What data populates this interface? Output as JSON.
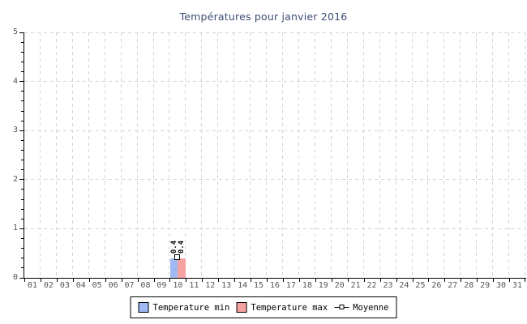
{
  "colors": {
    "title": "#3D4D75",
    "axis": "#000000",
    "grid": "#D4D4D4",
    "tick_label": "#555555",
    "value_label": "#000000",
    "temp_min": "#A0B9F3",
    "temp_max": "#F7A2A2",
    "marker_fill": "#FFFFFF",
    "marker_border": "#000000",
    "legend_bg": "#FFFFFF",
    "legend_border": "#000000"
  },
  "chart_data": {
    "type": "bar",
    "title": "Températures pour janvier 2016",
    "xlabel": "",
    "ylabel": "",
    "ylim": [
      0,
      5
    ],
    "y_major_step": 1,
    "y_minor_step": 0.2,
    "y_tick_labels": [
      "0",
      "1",
      "2",
      "3",
      "4",
      "5"
    ],
    "grid": true,
    "grid_style": "dashed",
    "legend_position": "bottom",
    "categories": [
      "01",
      "02",
      "03",
      "04",
      "05",
      "06",
      "07",
      "08",
      "09",
      "10",
      "11",
      "12",
      "13",
      "14",
      "15",
      "16",
      "17",
      "18",
      "19",
      "20",
      "21",
      "22",
      "23",
      "24",
      "25",
      "26",
      "27",
      "28",
      "29",
      "30",
      "31"
    ],
    "series": [
      {
        "name": "Temperature min",
        "type": "bar",
        "color_key": "temp_min",
        "values": [
          null,
          null,
          null,
          null,
          null,
          null,
          null,
          null,
          null,
          0.4,
          null,
          null,
          null,
          null,
          null,
          null,
          null,
          null,
          null,
          null,
          null,
          null,
          null,
          null,
          null,
          null,
          null,
          null,
          null,
          null,
          null
        ]
      },
      {
        "name": "Temperature max",
        "type": "bar",
        "color_key": "temp_max",
        "values": [
          null,
          null,
          null,
          null,
          null,
          null,
          null,
          null,
          null,
          0.4,
          null,
          null,
          null,
          null,
          null,
          null,
          null,
          null,
          null,
          null,
          null,
          null,
          null,
          null,
          null,
          null,
          null,
          null,
          null,
          null,
          null
        ]
      },
      {
        "name": "Moyenne",
        "type": "line",
        "marker": "square",
        "values": [
          null,
          null,
          null,
          null,
          null,
          null,
          null,
          null,
          null,
          0.4,
          null,
          null,
          null,
          null,
          null,
          null,
          null,
          null,
          null,
          null,
          null,
          null,
          null,
          null,
          null,
          null,
          null,
          null,
          null,
          null,
          null
        ]
      }
    ],
    "visible_value_labels": [
      "0.4",
      "0.4"
    ]
  }
}
